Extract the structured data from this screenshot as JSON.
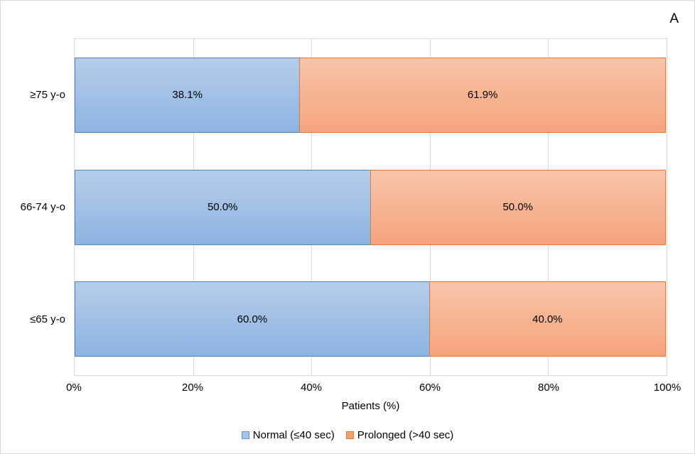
{
  "figure_label": "A",
  "chart_data": {
    "type": "bar",
    "orientation": "horizontal",
    "stacked": true,
    "title": "",
    "xlabel": "Patients (%)",
    "ylabel": "",
    "categories": [
      "≥75 y-o",
      "66-74 y-o",
      "≤65 y-o"
    ],
    "series": [
      {
        "name": "Normal (≤40 sec)",
        "values": [
          38.1,
          50.0,
          60.0
        ],
        "labels": [
          "38.1%",
          "50.0%",
          "60.0%"
        ],
        "fill_gradient": [
          "#b5cdea",
          "#8db4e1"
        ],
        "border_color": "#4a86c8",
        "legend_fill": "#a5c5e7",
        "legend_border": "#5b9bd5"
      },
      {
        "name": "Prolonged (>40 sec)",
        "values": [
          61.9,
          50.0,
          40.0
        ],
        "labels": [
          "61.9%",
          "50.0%",
          "40.0%"
        ],
        "fill_gradient": [
          "#f8c5a9",
          "#f5a47d"
        ],
        "border_color": "#e8762d",
        "legend_fill": "#f0a170",
        "legend_border": "#e8762d"
      }
    ],
    "x_ticks": [
      "0%",
      "20%",
      "40%",
      "60%",
      "80%",
      "100%"
    ],
    "xlim": [
      0,
      100
    ],
    "grid": "vertical-major",
    "legend_position": "bottom",
    "gridline_color": "#d9d9d9",
    "plot_border_color": "#d9d9d9",
    "outer_border_color": "#d9d9d9",
    "text_color": "#000000"
  }
}
